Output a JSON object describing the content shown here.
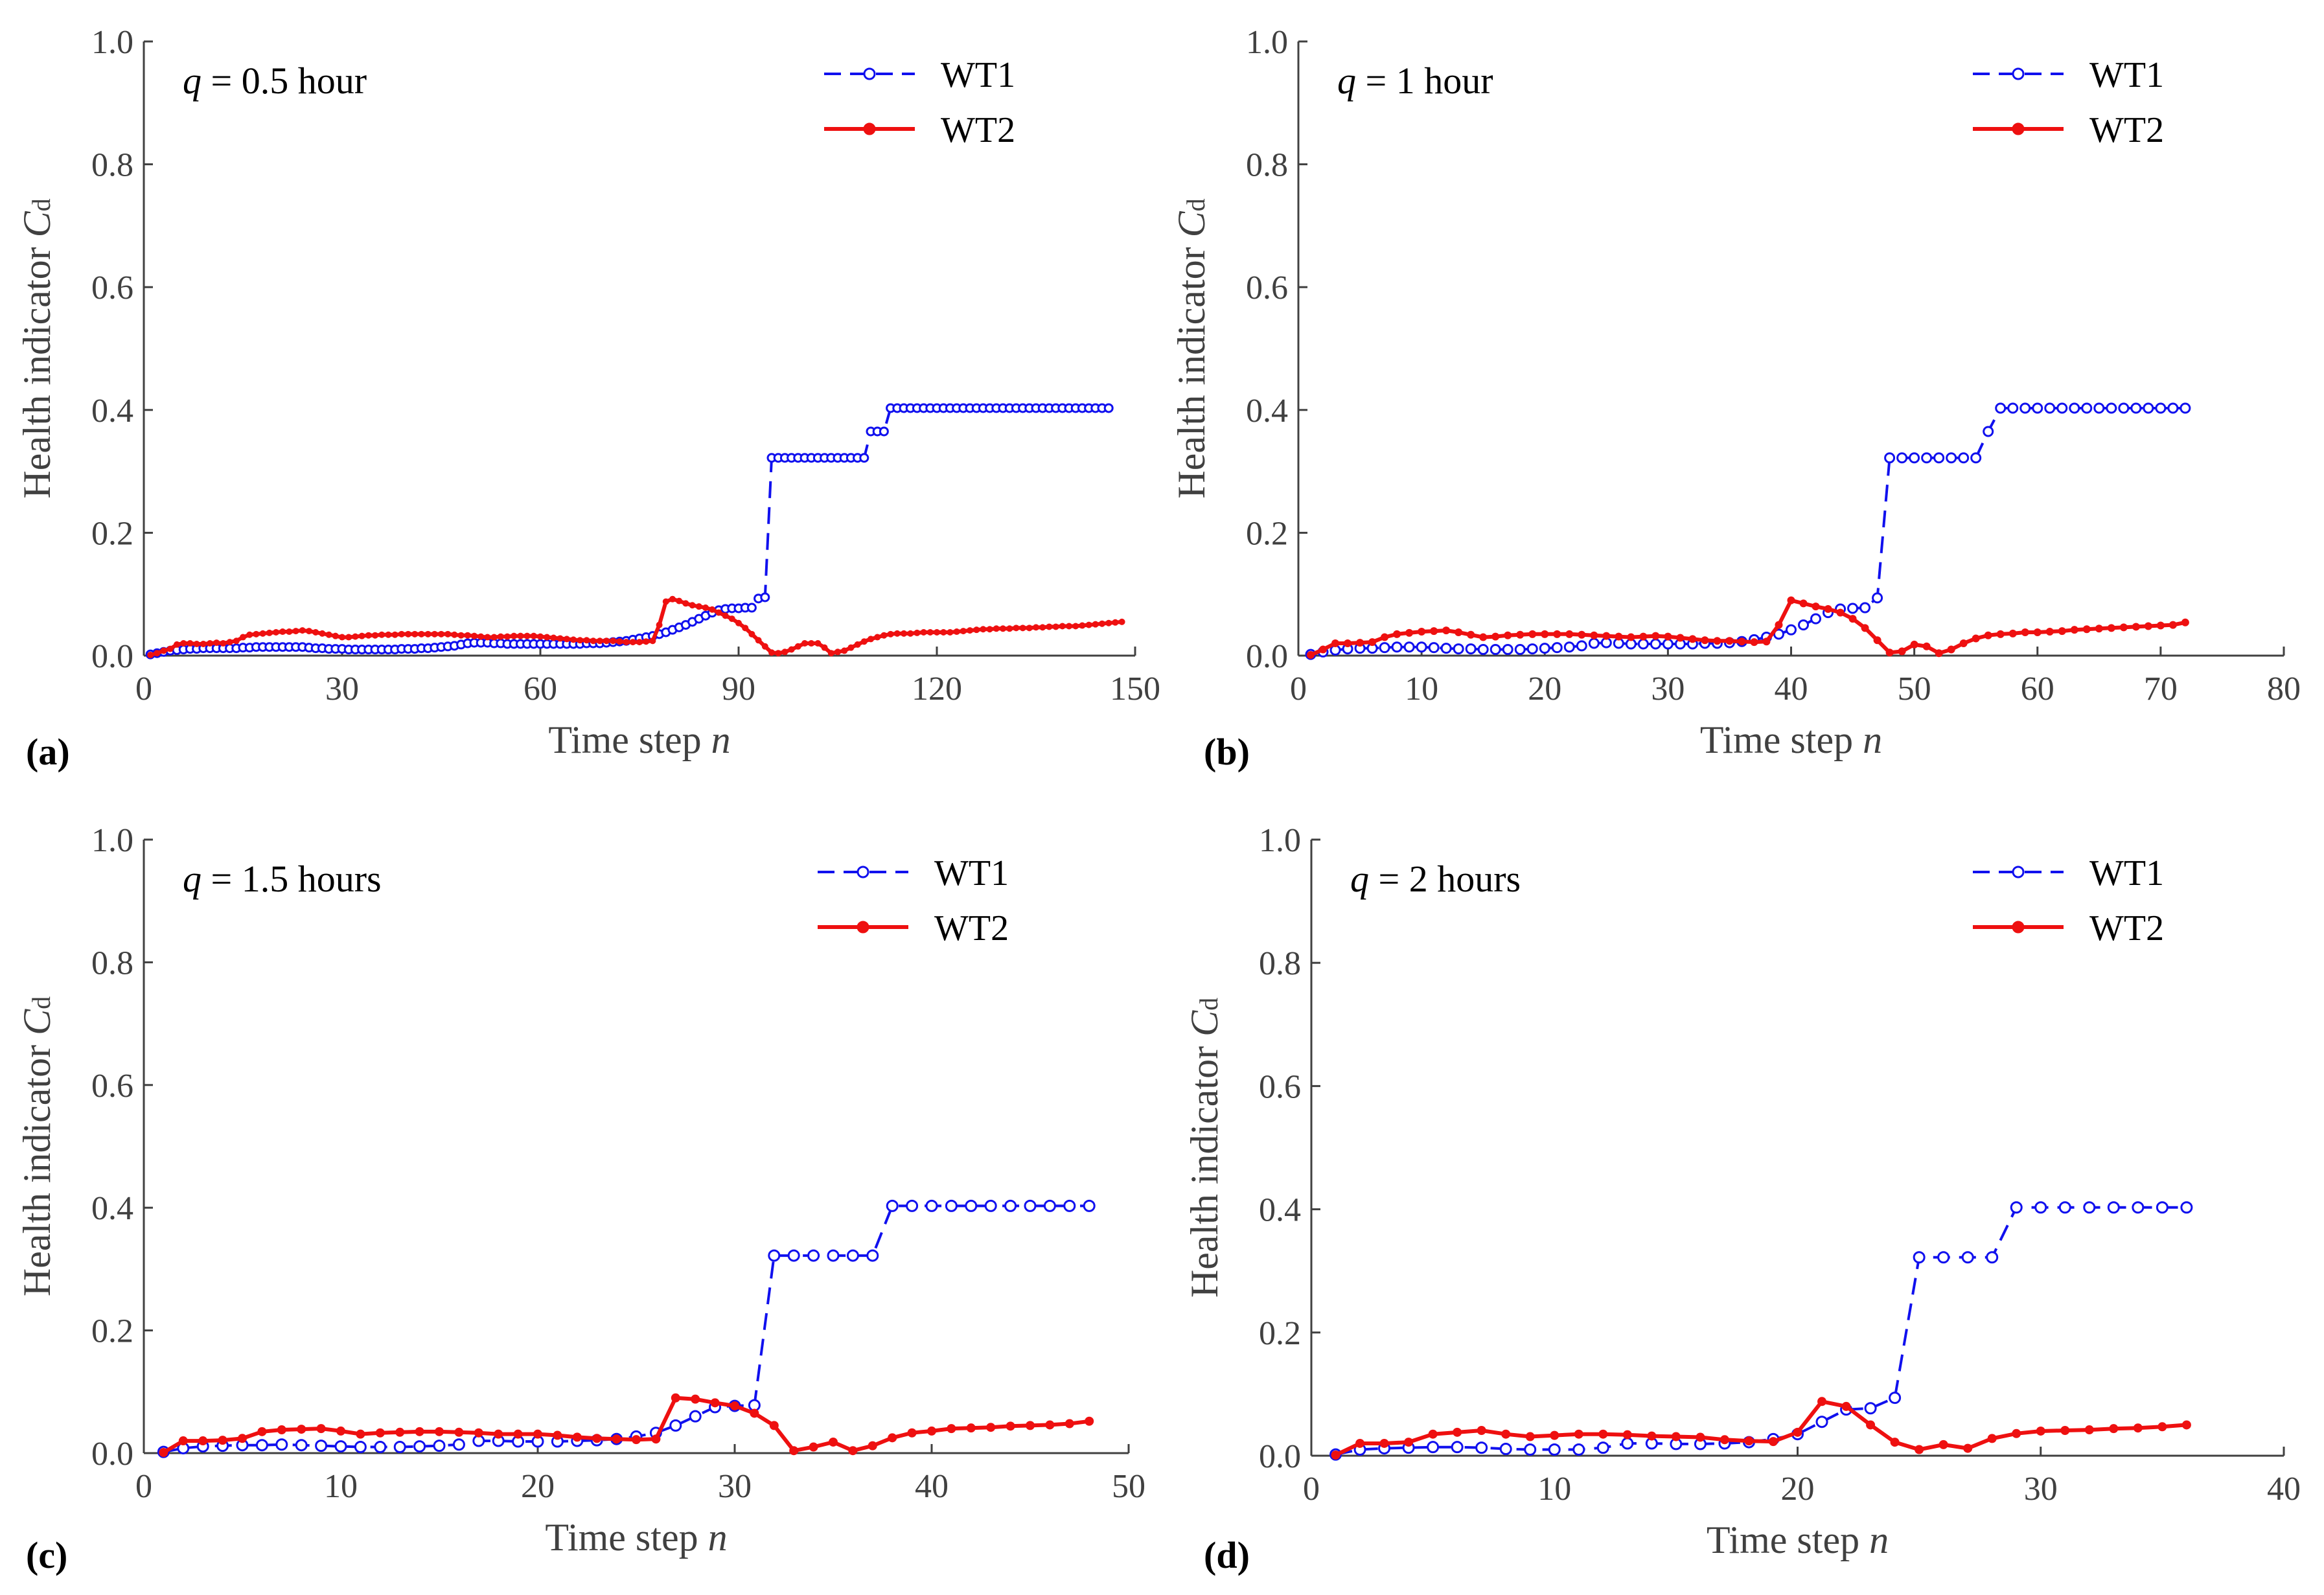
{
  "figure": {
    "colors": {
      "wt1": "#1010ee",
      "wt2": "#ee1010",
      "axis": "#404040"
    }
  },
  "chart_data": [
    {
      "type": "line",
      "panel_label": "(a)",
      "annotation": {
        "var": "q",
        "rest": " = 0.5 hour"
      },
      "xlabel": "Time step",
      "xlabel_var": "n",
      "ylabel": "Health indicator",
      "ylabel_var": "C",
      "ylabel_sub": "d",
      "xlim": [
        0,
        150
      ],
      "ylim": [
        0,
        1.0
      ],
      "xticks": [
        "0",
        "30",
        "60",
        "90",
        "120",
        "150"
      ],
      "yticks": [
        "0.0",
        "0.2",
        "0.4",
        "0.6",
        "0.8",
        "1.0"
      ],
      "legend": [
        "WT1",
        "WT2"
      ],
      "series": [
        {
          "name": "WT1",
          "x_start": 1,
          "values": [
            0.002,
            0.004,
            0.006,
            0.008,
            0.009,
            0.01,
            0.011,
            0.011,
            0.012,
            0.012,
            0.012,
            0.012,
            0.012,
            0.012,
            0.013,
            0.013,
            0.014,
            0.014,
            0.014,
            0.014,
            0.014,
            0.014,
            0.014,
            0.014,
            0.013,
            0.012,
            0.012,
            0.011,
            0.011,
            0.011,
            0.01,
            0.01,
            0.01,
            0.01,
            0.01,
            0.01,
            0.01,
            0.01,
            0.011,
            0.011,
            0.011,
            0.012,
            0.012,
            0.013,
            0.014,
            0.015,
            0.016,
            0.018,
            0.02,
            0.021,
            0.021,
            0.021,
            0.02,
            0.02,
            0.019,
            0.019,
            0.019,
            0.019,
            0.019,
            0.019,
            0.019,
            0.019,
            0.019,
            0.019,
            0.019,
            0.019,
            0.02,
            0.02,
            0.02,
            0.021,
            0.022,
            0.023,
            0.024,
            0.026,
            0.028,
            0.03,
            0.032,
            0.035,
            0.038,
            0.042,
            0.046,
            0.05,
            0.055,
            0.06,
            0.065,
            0.07,
            0.074,
            0.076,
            0.077,
            0.077,
            0.078,
            0.078,
            0.093,
            0.095,
            0.322,
            0.322,
            0.322,
            0.322,
            0.322,
            0.322,
            0.322,
            0.322,
            0.322,
            0.322,
            0.322,
            0.322,
            0.322,
            0.322,
            0.322,
            0.365,
            0.365,
            0.365,
            0.403,
            0.403,
            0.403,
            0.403,
            0.403,
            0.403,
            0.403,
            0.403,
            0.403,
            0.403,
            0.403,
            0.403,
            0.403,
            0.403,
            0.403,
            0.403,
            0.403,
            0.403,
            0.403,
            0.403,
            0.403,
            0.403,
            0.403,
            0.403,
            0.403,
            0.403,
            0.403,
            0.403,
            0.403,
            0.403,
            0.403,
            0.403,
            0.403,
            0.403
          ]
        },
        {
          "name": "WT2",
          "x_start": 1,
          "values": [
            0.001,
            0.004,
            0.008,
            0.011,
            0.018,
            0.02,
            0.02,
            0.019,
            0.019,
            0.02,
            0.021,
            0.02,
            0.022,
            0.024,
            0.03,
            0.034,
            0.035,
            0.036,
            0.037,
            0.038,
            0.039,
            0.039,
            0.04,
            0.041,
            0.04,
            0.038,
            0.036,
            0.034,
            0.032,
            0.03,
            0.03,
            0.031,
            0.032,
            0.033,
            0.033,
            0.034,
            0.034,
            0.034,
            0.035,
            0.035,
            0.035,
            0.035,
            0.035,
            0.035,
            0.035,
            0.035,
            0.034,
            0.033,
            0.033,
            0.032,
            0.031,
            0.03,
            0.03,
            0.031,
            0.031,
            0.032,
            0.032,
            0.032,
            0.032,
            0.031,
            0.03,
            0.029,
            0.028,
            0.027,
            0.026,
            0.025,
            0.025,
            0.024,
            0.024,
            0.024,
            0.024,
            0.023,
            0.022,
            0.022,
            0.022,
            0.023,
            0.024,
            0.05,
            0.088,
            0.092,
            0.089,
            0.085,
            0.082,
            0.08,
            0.078,
            0.075,
            0.07,
            0.065,
            0.06,
            0.053,
            0.045,
            0.035,
            0.025,
            0.015,
            0.005,
            0.004,
            0.006,
            0.01,
            0.015,
            0.02,
            0.02,
            0.02,
            0.013,
            0.004,
            0.006,
            0.008,
            0.013,
            0.018,
            0.023,
            0.027,
            0.03,
            0.033,
            0.035,
            0.036,
            0.036,
            0.036,
            0.037,
            0.038,
            0.038,
            0.038,
            0.038,
            0.038,
            0.039,
            0.04,
            0.041,
            0.042,
            0.043,
            0.043,
            0.044,
            0.044,
            0.044,
            0.045,
            0.045,
            0.045,
            0.046,
            0.046,
            0.047,
            0.047,
            0.048,
            0.048,
            0.048,
            0.049,
            0.05,
            0.051,
            0.052,
            0.053,
            0.054,
            0.055
          ]
        }
      ]
    },
    {
      "type": "line",
      "panel_label": "(b)",
      "annotation": {
        "var": "q",
        "rest": " = 1 hour"
      },
      "xlabel": "Time step",
      "xlabel_var": "n",
      "ylabel": "Health indicator",
      "ylabel_var": "C",
      "ylabel_sub": "d",
      "xlim": [
        0,
        80
      ],
      "ylim": [
        0,
        1.0
      ],
      "xticks": [
        "0",
        "10",
        "20",
        "30",
        "40",
        "50",
        "60",
        "70",
        "80"
      ],
      "yticks": [
        "0.0",
        "0.2",
        "0.4",
        "0.6",
        "0.8",
        "1.0"
      ],
      "legend": [
        "WT1",
        "WT2"
      ],
      "series": [
        {
          "name": "WT1",
          "x_start": 1,
          "values": [
            0.002,
            0.006,
            0.009,
            0.011,
            0.012,
            0.012,
            0.013,
            0.014,
            0.014,
            0.014,
            0.013,
            0.012,
            0.011,
            0.011,
            0.01,
            0.01,
            0.01,
            0.01,
            0.011,
            0.012,
            0.013,
            0.014,
            0.016,
            0.02,
            0.021,
            0.02,
            0.019,
            0.019,
            0.019,
            0.019,
            0.019,
            0.019,
            0.02,
            0.02,
            0.021,
            0.023,
            0.026,
            0.03,
            0.035,
            0.042,
            0.05,
            0.06,
            0.07,
            0.076,
            0.077,
            0.078,
            0.094,
            0.322,
            0.322,
            0.322,
            0.322,
            0.322,
            0.322,
            0.322,
            0.322,
            0.365,
            0.403,
            0.403,
            0.403,
            0.403,
            0.403,
            0.403,
            0.403,
            0.403,
            0.403,
            0.403,
            0.403,
            0.403,
            0.403,
            0.403,
            0.403,
            0.403
          ]
        },
        {
          "name": "WT2",
          "x_start": 1,
          "values": [
            0.001,
            0.01,
            0.02,
            0.02,
            0.021,
            0.022,
            0.03,
            0.035,
            0.037,
            0.039,
            0.04,
            0.041,
            0.038,
            0.034,
            0.03,
            0.031,
            0.033,
            0.034,
            0.035,
            0.035,
            0.035,
            0.035,
            0.034,
            0.033,
            0.032,
            0.031,
            0.03,
            0.031,
            0.032,
            0.031,
            0.029,
            0.027,
            0.025,
            0.024,
            0.024,
            0.023,
            0.022,
            0.023,
            0.05,
            0.09,
            0.085,
            0.08,
            0.076,
            0.07,
            0.06,
            0.045,
            0.025,
            0.005,
            0.007,
            0.018,
            0.015,
            0.004,
            0.01,
            0.02,
            0.028,
            0.033,
            0.035,
            0.036,
            0.038,
            0.038,
            0.039,
            0.04,
            0.042,
            0.043,
            0.044,
            0.045,
            0.046,
            0.047,
            0.048,
            0.049,
            0.05,
            0.054
          ]
        }
      ]
    },
    {
      "type": "line",
      "panel_label": "(c)",
      "annotation": {
        "var": "q",
        "rest": " = 1.5 hours"
      },
      "xlabel": "Time step",
      "xlabel_var": "n",
      "ylabel": "Health indicator",
      "ylabel_var": "C",
      "ylabel_sub": "d",
      "xlim": [
        0,
        50
      ],
      "ylim": [
        0,
        1.0
      ],
      "xticks": [
        "0",
        "10",
        "20",
        "30",
        "40",
        "50"
      ],
      "yticks": [
        "0.0",
        "0.2",
        "0.4",
        "0.6",
        "0.8",
        "1.0"
      ],
      "legend": [
        "WT1",
        "WT2"
      ],
      "series": [
        {
          "name": "WT1",
          "x_start": 1,
          "values": [
            0.002,
            0.008,
            0.011,
            0.012,
            0.013,
            0.013,
            0.014,
            0.013,
            0.012,
            0.011,
            0.01,
            0.01,
            0.01,
            0.011,
            0.012,
            0.014,
            0.02,
            0.02,
            0.019,
            0.019,
            0.019,
            0.02,
            0.021,
            0.023,
            0.027,
            0.033,
            0.045,
            0.06,
            0.075,
            0.077,
            0.078,
            0.322,
            0.322,
            0.322,
            0.322,
            0.322,
            0.322,
            0.403,
            0.403,
            0.403,
            0.403,
            0.403,
            0.403,
            0.403,
            0.403,
            0.403,
            0.403,
            0.403
          ]
        },
        {
          "name": "WT2",
          "x_start": 1,
          "values": [
            0.001,
            0.02,
            0.02,
            0.021,
            0.024,
            0.035,
            0.038,
            0.039,
            0.04,
            0.036,
            0.031,
            0.033,
            0.034,
            0.035,
            0.035,
            0.034,
            0.033,
            0.031,
            0.031,
            0.031,
            0.029,
            0.026,
            0.024,
            0.023,
            0.022,
            0.023,
            0.09,
            0.088,
            0.082,
            0.077,
            0.065,
            0.045,
            0.004,
            0.01,
            0.018,
            0.004,
            0.012,
            0.025,
            0.033,
            0.036,
            0.04,
            0.041,
            0.042,
            0.044,
            0.045,
            0.046,
            0.048,
            0.052
          ]
        }
      ]
    },
    {
      "type": "line",
      "panel_label": "(d)",
      "annotation": {
        "var": "q",
        "rest": " = 2 hours"
      },
      "xlabel": "Time step",
      "xlabel_var": "n",
      "ylabel": "Health indicator",
      "ylabel_var": "C",
      "ylabel_sub": "d",
      "xlim": [
        0,
        40
      ],
      "ylim": [
        0,
        1.0
      ],
      "xticks": [
        "0",
        "10",
        "20",
        "30",
        "40"
      ],
      "yticks": [
        "0.0",
        "0.2",
        "0.4",
        "0.6",
        "0.8",
        "1.0"
      ],
      "legend": [
        "WT1",
        "WT2"
      ],
      "series": [
        {
          "name": "WT1",
          "x_start": 1,
          "values": [
            0.002,
            0.01,
            0.012,
            0.013,
            0.014,
            0.014,
            0.013,
            0.011,
            0.01,
            0.01,
            0.01,
            0.013,
            0.02,
            0.02,
            0.019,
            0.019,
            0.02,
            0.022,
            0.027,
            0.035,
            0.055,
            0.075,
            0.077,
            0.094,
            0.322,
            0.322,
            0.322,
            0.322,
            0.403,
            0.403,
            0.403,
            0.403,
            0.403,
            0.403,
            0.403,
            0.403
          ]
        },
        {
          "name": "WT2",
          "x_start": 1,
          "values": [
            0.001,
            0.02,
            0.02,
            0.022,
            0.035,
            0.038,
            0.041,
            0.035,
            0.031,
            0.033,
            0.035,
            0.035,
            0.034,
            0.032,
            0.031,
            0.03,
            0.026,
            0.024,
            0.023,
            0.038,
            0.088,
            0.08,
            0.05,
            0.022,
            0.01,
            0.018,
            0.012,
            0.028,
            0.036,
            0.04,
            0.041,
            0.042,
            0.044,
            0.045,
            0.047,
            0.05
          ]
        }
      ]
    }
  ]
}
